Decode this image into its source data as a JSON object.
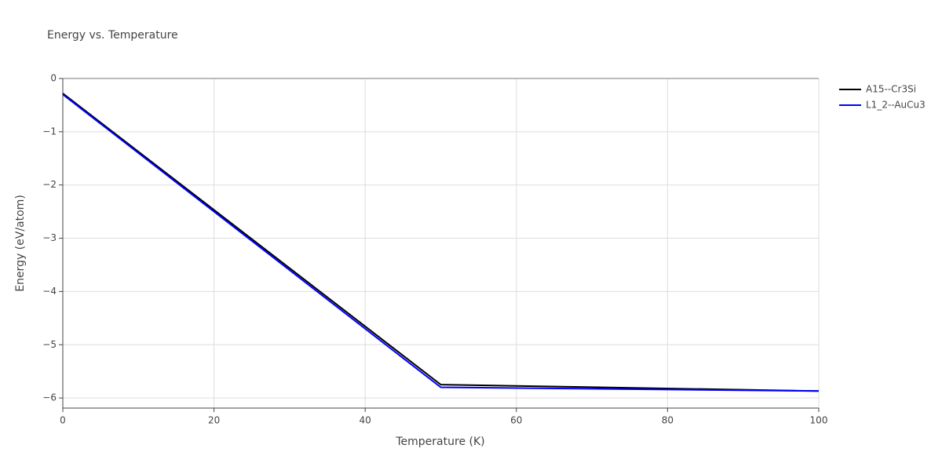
{
  "chart_data": {
    "type": "line",
    "title": "Energy vs. Temperature",
    "x_label": "Temperature (K)",
    "y_label": "Energy (eV/atom)",
    "xlim": [
      0,
      100
    ],
    "xticks": [
      0,
      20,
      40,
      60,
      80,
      100
    ],
    "ylim": [
      -6.19,
      0
    ],
    "yticks": [
      0,
      {
        "value": -1,
        "label": "−1"
      },
      {
        "value": -2,
        "label": "−2"
      },
      {
        "value": -3,
        "label": "−3"
      },
      {
        "value": -4,
        "label": "−4"
      },
      {
        "value": -5,
        "label": "−5"
      },
      {
        "value": -6,
        "label": "−6"
      }
    ],
    "grid": true,
    "legend": "right",
    "series": [
      {
        "name": "A15--Cr3Si",
        "color": "#000000",
        "x": [
          0,
          50,
          100
        ],
        "values": [
          -0.28,
          -5.75,
          -5.87
        ]
      },
      {
        "name": "L1_2--AuCu3",
        "color": "#0000ff",
        "x": [
          0,
          50,
          100
        ],
        "values": [
          -0.3,
          -5.8,
          -5.87
        ]
      }
    ]
  }
}
